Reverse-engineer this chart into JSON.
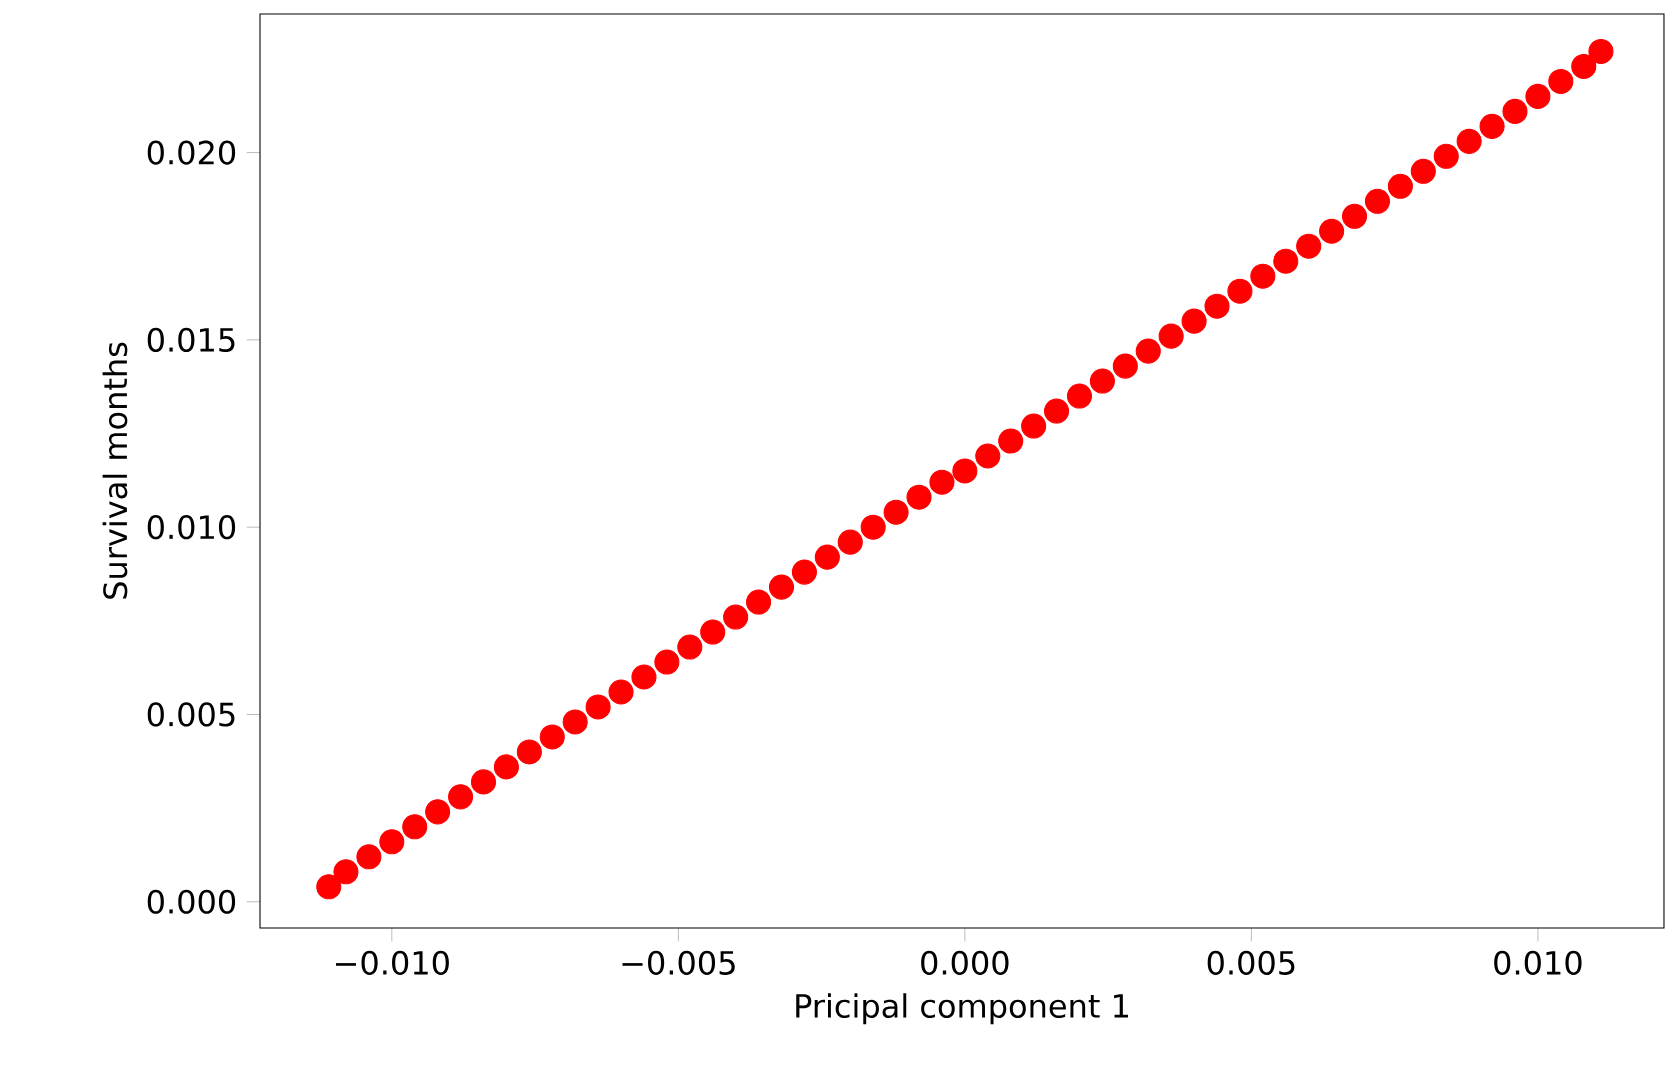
{
  "chart_data": {
    "type": "scatter",
    "xlabel": "Pricipal component 1",
    "ylabel": "Survival months",
    "x": [
      -0.0111,
      -0.0108,
      -0.0104,
      -0.01,
      -0.0096,
      -0.0092,
      -0.0088,
      -0.0084,
      -0.008,
      -0.0076,
      -0.0072,
      -0.0068,
      -0.0064,
      -0.006,
      -0.0056,
      -0.0052,
      -0.0048,
      -0.0044,
      -0.004,
      -0.0036,
      -0.0032,
      -0.0028,
      -0.0024,
      -0.002,
      -0.0016,
      -0.0012,
      -0.0008,
      -0.0004,
      0.0,
      0.0004,
      0.0008,
      0.0012,
      0.0016,
      0.002,
      0.0024,
      0.0028,
      0.0032,
      0.0036,
      0.004,
      0.0044,
      0.0048,
      0.0052,
      0.0056,
      0.006,
      0.0064,
      0.0068,
      0.0072,
      0.0076,
      0.008,
      0.0084,
      0.0088,
      0.0092,
      0.0096,
      0.01,
      0.0104,
      0.0108,
      0.0111
    ],
    "values": [
      0.0004,
      0.0008,
      0.0012,
      0.0016,
      0.002,
      0.0024,
      0.0028,
      0.0032,
      0.0036,
      0.004,
      0.0044,
      0.0048,
      0.0052,
      0.0056,
      0.006,
      0.0064,
      0.0068,
      0.0072,
      0.0076,
      0.008,
      0.0084,
      0.0088,
      0.0092,
      0.0096,
      0.01,
      0.0104,
      0.0108,
      0.0112,
      0.0115,
      0.0119,
      0.0123,
      0.0127,
      0.0131,
      0.0135,
      0.0139,
      0.0143,
      0.0147,
      0.0151,
      0.0155,
      0.0159,
      0.0163,
      0.0167,
      0.0171,
      0.0175,
      0.0179,
      0.0183,
      0.0187,
      0.0191,
      0.0195,
      0.0199,
      0.0203,
      0.0207,
      0.0211,
      0.0215,
      0.0219,
      0.0223,
      0.0227
    ],
    "color": "#ff0000",
    "xlim": [
      -0.0123,
      0.0122
    ],
    "ylim": [
      -0.0007,
      0.0237
    ],
    "xticks": [
      {
        "value": -0.01,
        "label": "−0.010"
      },
      {
        "value": -0.005,
        "label": "−0.005"
      },
      {
        "value": 0,
        "label": "0.000"
      },
      {
        "value": 0.005,
        "label": "0.005"
      },
      {
        "value": 0.01,
        "label": "0.010"
      }
    ],
    "yticks": [
      {
        "value": 0,
        "label": "0.000"
      },
      {
        "value": 0.005,
        "label": "0.005"
      },
      {
        "value": 0.01,
        "label": "0.010"
      },
      {
        "value": 0.015,
        "label": "0.015"
      },
      {
        "value": 0.02,
        "label": "0.020"
      }
    ]
  }
}
